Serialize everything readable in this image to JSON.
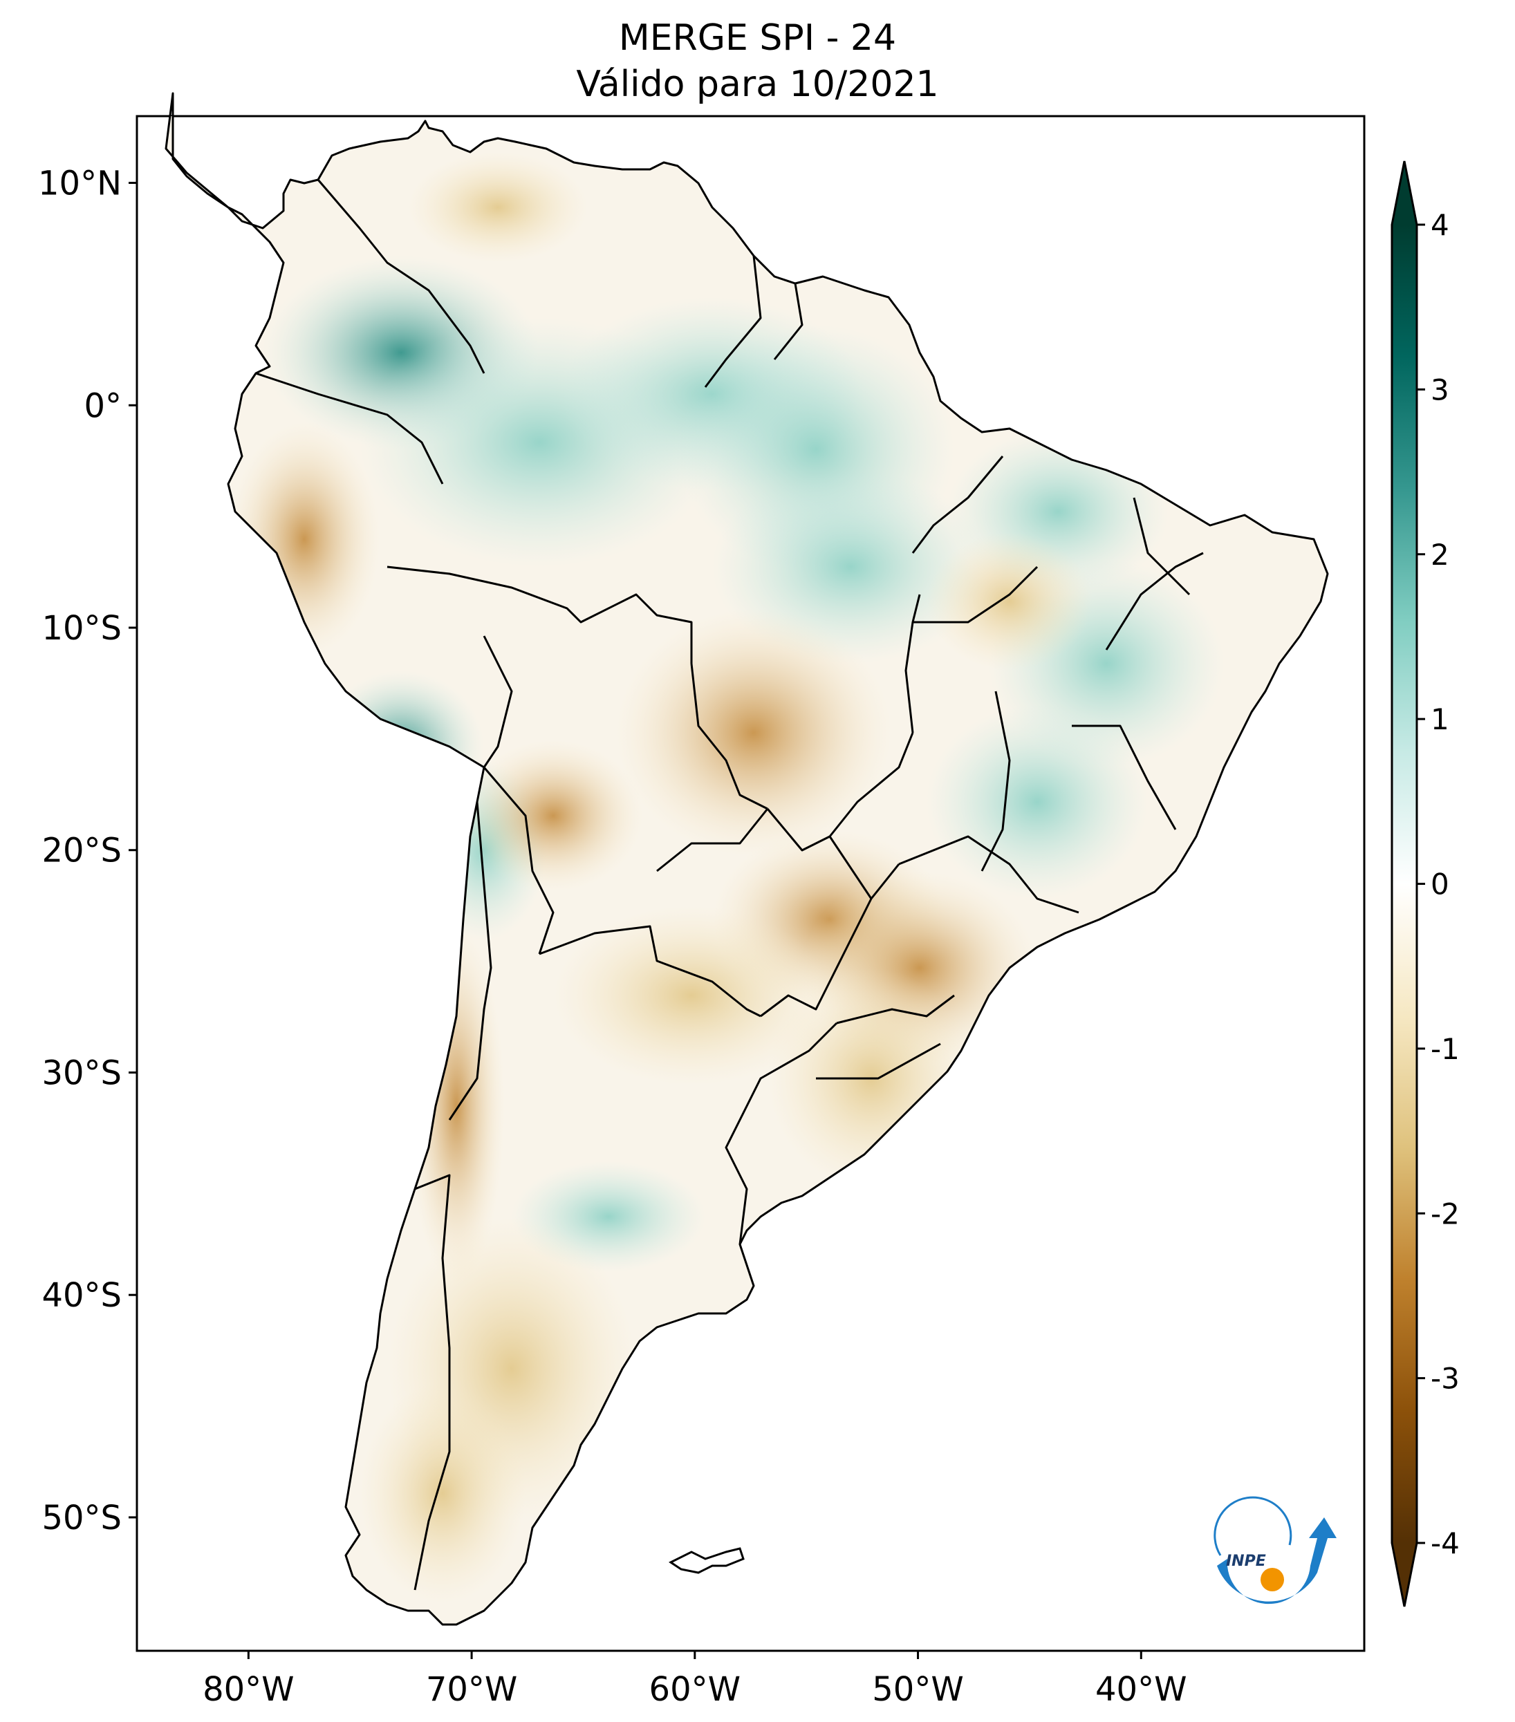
{
  "title": {
    "line1": "MERGE   SPI - 24",
    "line2": "Válido para 10/2021"
  },
  "map": {
    "lon_range": [
      -85,
      -30
    ],
    "lat_range": [
      -56,
      13
    ],
    "lat_ticks": [
      {
        "value": 10,
        "label": "10°N"
      },
      {
        "value": 0,
        "label": "0°"
      },
      {
        "value": -10,
        "label": "10°S"
      },
      {
        "value": -20,
        "label": "20°S"
      },
      {
        "value": -30,
        "label": "30°S"
      },
      {
        "value": -40,
        "label": "40°S"
      },
      {
        "value": -50,
        "label": "50°S"
      }
    ],
    "lon_ticks": [
      {
        "value": -80,
        "label": "80°W"
      },
      {
        "value": -70,
        "label": "70°W"
      },
      {
        "value": -60,
        "label": "60°W"
      },
      {
        "value": -50,
        "label": "50°W"
      },
      {
        "value": -40,
        "label": "40°W"
      }
    ]
  },
  "colorbar": {
    "min": -4,
    "max": 4,
    "ticks": [
      {
        "value": 4,
        "label": "4"
      },
      {
        "value": 3,
        "label": "3"
      },
      {
        "value": 2,
        "label": "2"
      },
      {
        "value": 1,
        "label": "1"
      },
      {
        "value": 0,
        "label": "0"
      },
      {
        "value": -1,
        "label": "-1"
      },
      {
        "value": -2,
        "label": "-2"
      },
      {
        "value": -3,
        "label": "-3"
      },
      {
        "value": -4,
        "label": "-4"
      }
    ],
    "colors": [
      "#543005",
      "#8c510a",
      "#bf812d",
      "#dfc27d",
      "#f6e8c3",
      "#ffffff",
      "#c7eae5",
      "#80cdc1",
      "#35978f",
      "#01665e",
      "#003c30"
    ]
  },
  "logo": {
    "text": "INPE",
    "colors": {
      "blue": "#1e7ec8",
      "orange": "#f29400"
    }
  }
}
